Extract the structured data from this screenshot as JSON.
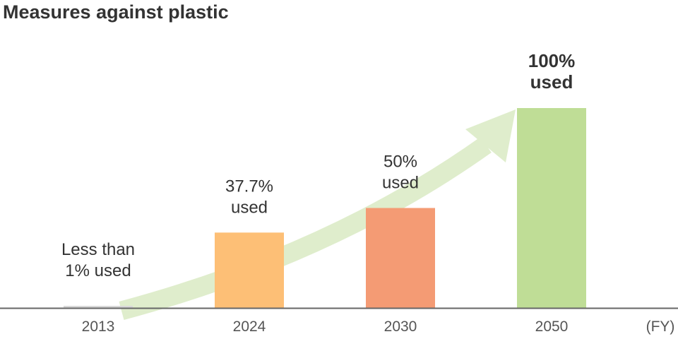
{
  "chart_data": {
    "type": "bar",
    "title": "Measures against plastic",
    "xlabel": "(FY)",
    "ylabel": "",
    "categories": [
      "2013",
      "2024",
      "2030",
      "2050"
    ],
    "values": [
      1,
      37.7,
      50,
      100
    ],
    "ylim": [
      0,
      100
    ],
    "grid": false,
    "data_labels": [
      [
        "Less than",
        "1% used"
      ],
      [
        "37.7%",
        "used"
      ],
      [
        "50%",
        "used"
      ],
      [
        "100%",
        "used"
      ]
    ],
    "colors": [
      "#d9d9d9",
      "#fdbf76",
      "#f49b74",
      "#bfdd96"
    ],
    "arrow_color": "#dfedcc",
    "annotation": "upward trend arrow"
  }
}
